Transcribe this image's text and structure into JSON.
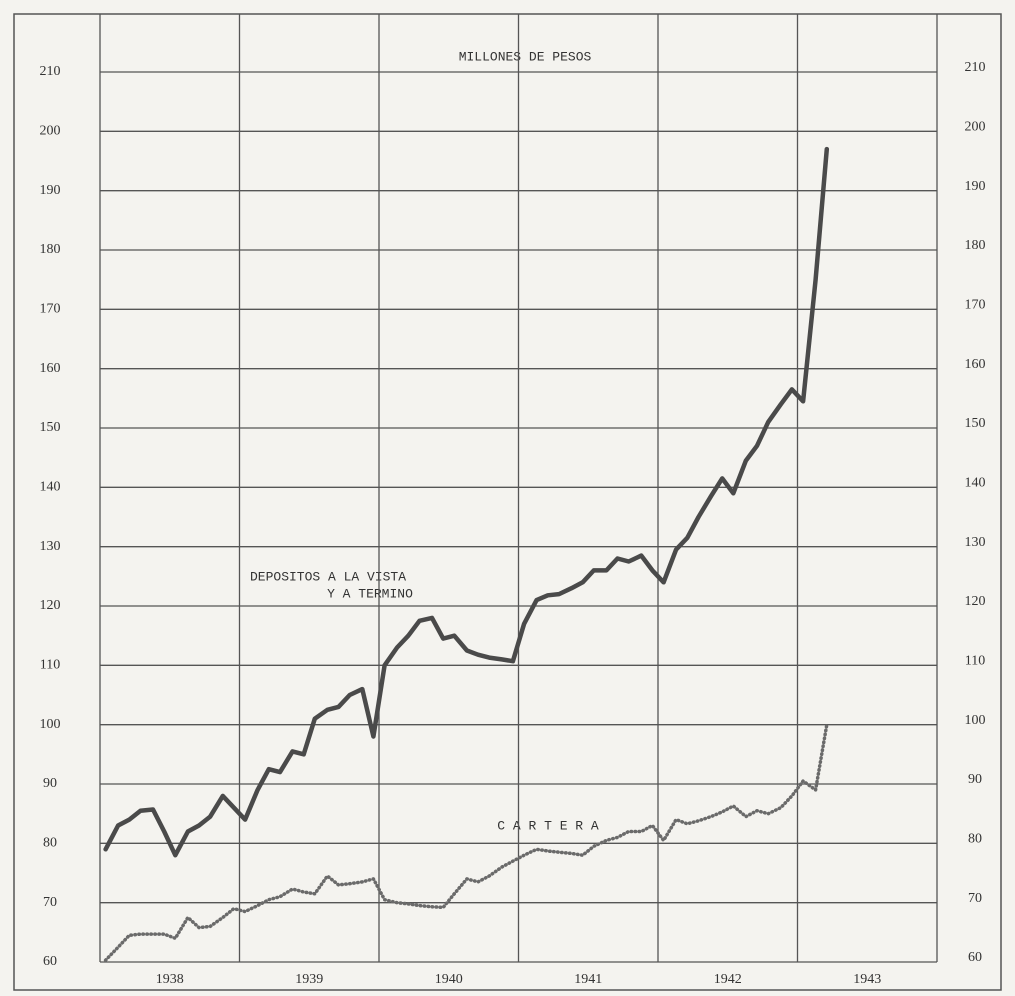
{
  "chart_data": {
    "type": "line",
    "title": "MILLONES DE PESOS",
    "annotations": [
      "DEPOSITOS A LA VISTA",
      "Y A TERMINO",
      "C A R T E R A"
    ],
    "x": [
      1938.04,
      1938.13,
      1938.21,
      1938.29,
      1938.38,
      1938.46,
      1938.54,
      1938.63,
      1938.71,
      1938.79,
      1938.88,
      1938.96,
      1939.04,
      1939.13,
      1939.21,
      1939.29,
      1939.38,
      1939.46,
      1939.54,
      1939.63,
      1939.71,
      1939.79,
      1939.88,
      1939.96,
      1940.04,
      1940.13,
      1940.21,
      1940.29,
      1940.38,
      1940.46,
      1940.54,
      1940.63,
      1940.71,
      1940.79,
      1940.88,
      1940.96,
      1941.04,
      1941.13,
      1941.21,
      1941.29,
      1941.38,
      1941.46,
      1941.54,
      1941.63,
      1941.71,
      1941.79,
      1941.88,
      1941.96,
      1942.04,
      1942.13,
      1942.21,
      1942.29,
      1942.38,
      1942.46,
      1942.54,
      1942.63,
      1942.71,
      1942.79,
      1942.88,
      1942.96,
      1943.04,
      1943.13,
      1943.21
    ],
    "series": [
      {
        "color": "#4a4a4a",
        "style": "solid",
        "values": [
          79,
          83,
          84,
          85.5,
          85.7,
          82,
          78,
          82,
          83,
          84.5,
          88,
          86,
          84,
          89,
          92.5,
          92,
          95.5,
          95,
          101,
          102.5,
          103,
          105,
          106,
          98,
          110,
          113,
          115,
          117.5,
          118,
          114.5,
          115,
          112.5,
          111.8,
          111.3,
          111,
          110.7,
          117,
          121,
          121.8,
          122,
          123,
          124,
          126,
          126,
          128,
          127.5,
          128.5,
          126,
          124,
          129.5,
          131.5,
          135,
          138.5,
          141.5,
          139,
          144.5,
          147,
          151,
          154,
          156.5,
          154.5,
          175,
          197
        ]
      },
      {
        "color": "#6a6a6a",
        "style": "dotted",
        "values": [
          60.3,
          62.5,
          64.5,
          64.7,
          64.7,
          64.7,
          64,
          67.5,
          65.8,
          66,
          67.5,
          69,
          68.5,
          69.5,
          70.5,
          71,
          72.3,
          71.8,
          71.5,
          74.5,
          73,
          73.2,
          73.5,
          74,
          70.5,
          70,
          69.8,
          69.5,
          69.3,
          69.2,
          71.5,
          74,
          73.5,
          74.5,
          76,
          77,
          78,
          79,
          78.7,
          78.5,
          78.3,
          78,
          79.5,
          80.5,
          81,
          82,
          82,
          83,
          80.5,
          84,
          83.3,
          83.8,
          84.5,
          85.3,
          86.3,
          84.5,
          85.5,
          85,
          86,
          88,
          90.5,
          89,
          100
        ]
      }
    ],
    "xlim": [
      1938,
      1944
    ],
    "xgrid": [
      1938,
      1939,
      1940,
      1941,
      1942,
      1943,
      1944
    ],
    "xticks": [
      {
        "value": 1938.5,
        "label": "1938"
      },
      {
        "value": 1939.5,
        "label": "1939"
      },
      {
        "value": 1940.5,
        "label": "1940"
      },
      {
        "value": 1941.5,
        "label": "1941"
      },
      {
        "value": 1942.5,
        "label": "1942"
      },
      {
        "value": 1943.5,
        "label": "1943"
      }
    ],
    "ylim": [
      60,
      210
    ],
    "yticks": [
      60,
      70,
      80,
      90,
      100,
      110,
      120,
      130,
      140,
      150,
      160,
      170,
      180,
      190,
      200,
      210
    ],
    "grid": true
  }
}
